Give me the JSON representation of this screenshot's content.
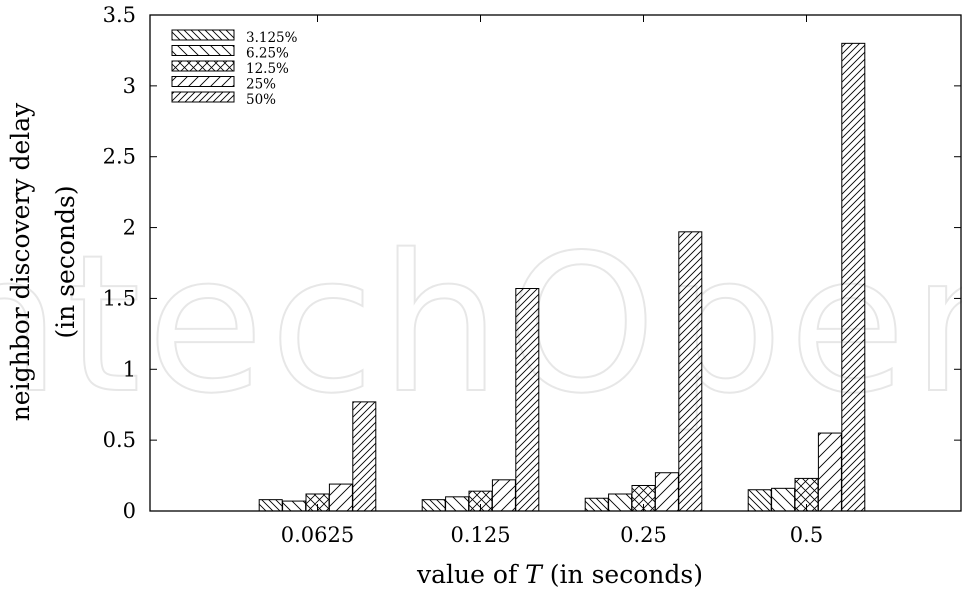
{
  "chart_data": {
    "type": "bar",
    "title": "",
    "xlabel_pre": "value of ",
    "xlabel_var": "T",
    "xlabel_post": " (in seconds)",
    "ylabel_line1": "neighbor discovery delay",
    "ylabel_line2": "(in seconds)",
    "ylim": [
      0,
      3.5
    ],
    "yticks": [
      "0",
      "0.5",
      "1",
      "1.5",
      "2",
      "2.5",
      "3",
      "3.5"
    ],
    "categories": [
      "0.0625",
      "0.125",
      "0.25",
      "0.5"
    ],
    "legend_position": "top-left",
    "grid": false,
    "series": [
      {
        "name": "3.125%",
        "values": [
          0.08,
          0.08,
          0.09,
          0.15
        ]
      },
      {
        "name": "6.25%",
        "values": [
          0.07,
          0.1,
          0.12,
          0.16
        ]
      },
      {
        "name": "12.5%",
        "values": [
          0.12,
          0.14,
          0.18,
          0.23
        ]
      },
      {
        "name": "25%",
        "values": [
          0.19,
          0.22,
          0.27,
          0.55
        ]
      },
      {
        "name": "50%",
        "values": [
          0.77,
          1.57,
          1.97,
          3.3
        ]
      }
    ]
  },
  "watermark": "ntechOpen"
}
